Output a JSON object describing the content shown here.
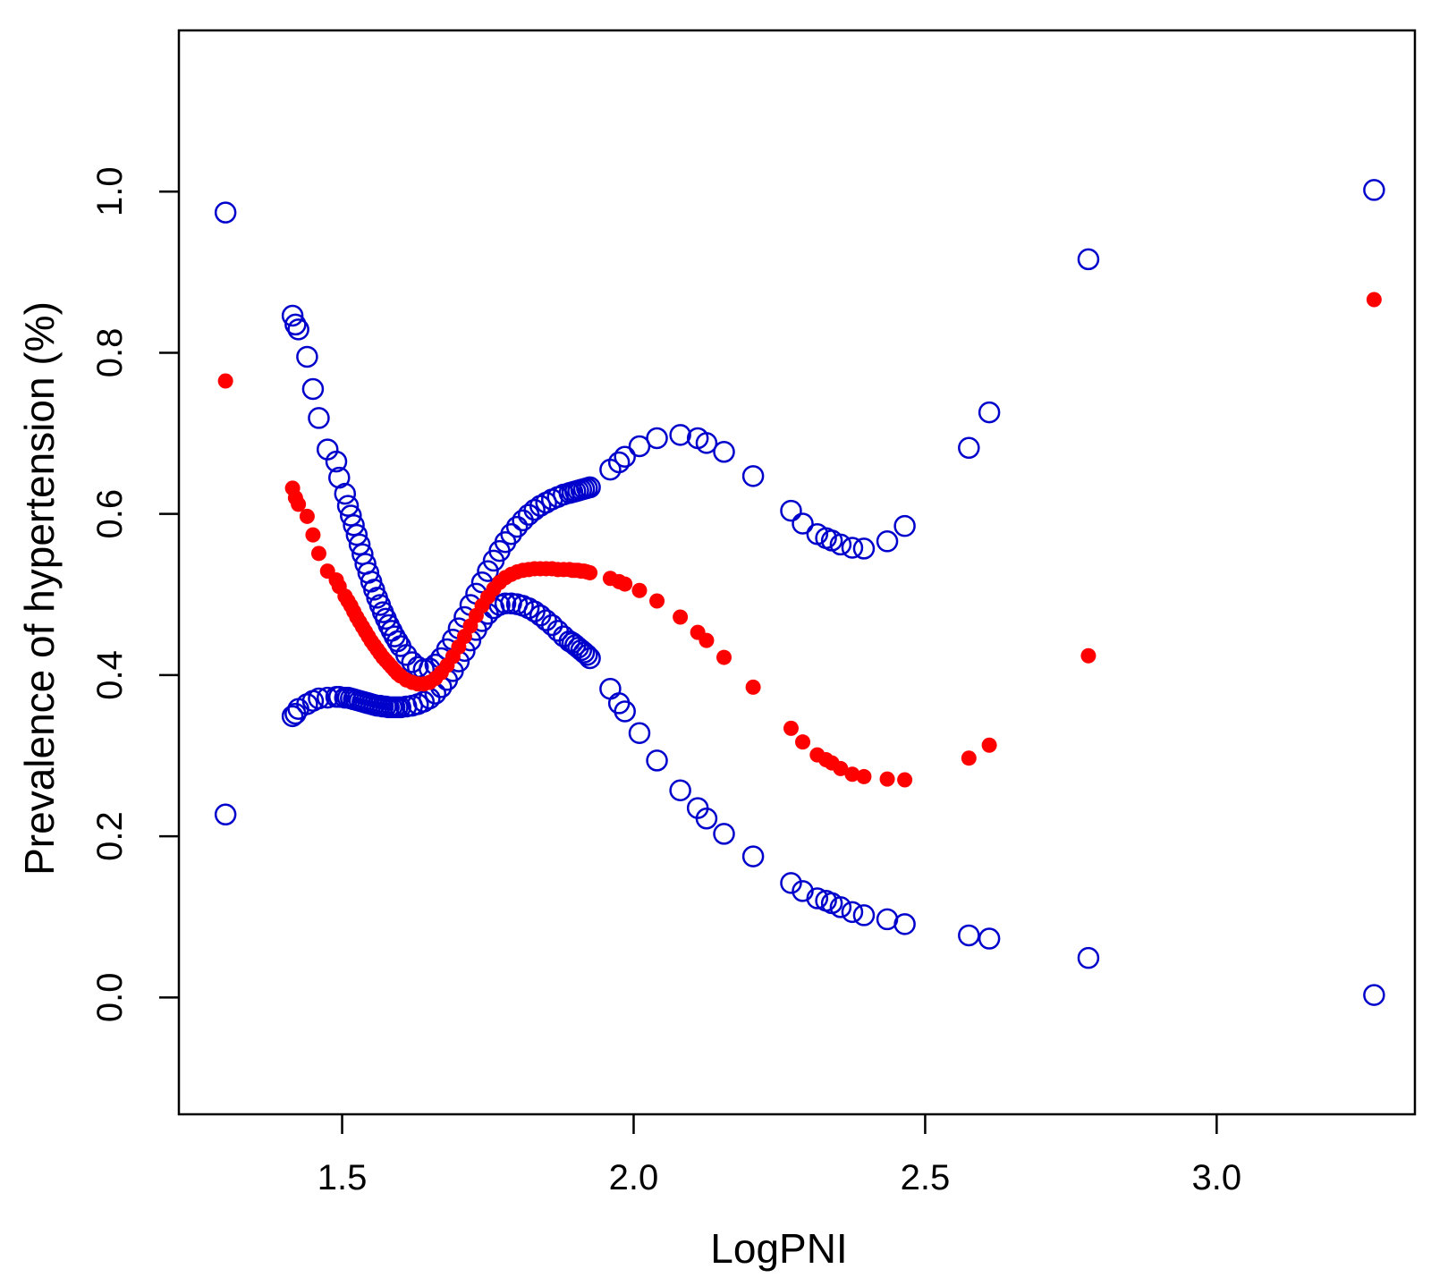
{
  "chart_data": {
    "type": "scatter",
    "title": "",
    "xlabel": "LogPNI",
    "ylabel": "Prevalence of hypertension (%)",
    "xlim": [
      1.22,
      3.34
    ],
    "ylim": [
      -0.145,
      1.2
    ],
    "x_ticks": [
      1.5,
      2.0,
      2.5,
      3.0
    ],
    "x_tick_labels": [
      "1.5",
      "2.0",
      "2.5",
      "3.0"
    ],
    "y_ticks": [
      0.0,
      0.2,
      0.4,
      0.6,
      0.8,
      1.0
    ],
    "y_tick_labels": [
      "0.0",
      "0.2",
      "0.4",
      "0.6",
      "0.8",
      "1.0"
    ],
    "grid": false,
    "legend": "none",
    "colors": {
      "estimate": "#ff0000",
      "ci": "#0000cc"
    },
    "x": [
      1.3,
      1.415,
      1.42,
      1.425,
      1.44,
      1.45,
      1.46,
      1.475,
      1.49,
      1.495,
      1.505,
      1.51,
      1.515,
      1.52,
      1.525,
      1.53,
      1.535,
      1.54,
      1.545,
      1.55,
      1.555,
      1.56,
      1.565,
      1.57,
      1.575,
      1.58,
      1.585,
      1.59,
      1.595,
      1.6,
      1.61,
      1.62,
      1.63,
      1.64,
      1.65,
      1.66,
      1.67,
      1.68,
      1.69,
      1.7,
      1.71,
      1.72,
      1.73,
      1.74,
      1.75,
      1.76,
      1.77,
      1.78,
      1.79,
      1.8,
      1.81,
      1.82,
      1.83,
      1.84,
      1.85,
      1.86,
      1.87,
      1.88,
      1.89,
      1.895,
      1.9,
      1.905,
      1.91,
      1.915,
      1.92,
      1.925,
      1.96,
      1.975,
      1.985,
      2.01,
      2.04,
      2.08,
      2.11,
      2.125,
      2.155,
      2.205,
      2.27,
      2.29,
      2.315,
      2.33,
      2.34,
      2.355,
      2.375,
      2.395,
      2.435,
      2.465,
      2.575,
      2.61,
      2.78,
      3.27
    ],
    "series": [
      {
        "marker": "filled",
        "values": [
          0.765,
          0.632,
          0.62,
          0.612,
          0.597,
          0.574,
          0.551,
          0.529,
          0.518,
          0.51,
          0.498,
          0.492,
          0.486,
          0.479,
          0.472,
          0.466,
          0.46,
          0.454,
          0.448,
          0.442,
          0.437,
          0.432,
          0.427,
          0.422,
          0.418,
          0.414,
          0.41,
          0.406,
          0.402,
          0.399,
          0.394,
          0.391,
          0.389,
          0.389,
          0.391,
          0.396,
          0.403,
          0.412,
          0.423,
          0.435,
          0.448,
          0.461,
          0.474,
          0.486,
          0.497,
          0.507,
          0.515,
          0.521,
          0.525,
          0.528,
          0.53,
          0.531,
          0.532,
          0.532,
          0.532,
          0.532,
          0.531,
          0.531,
          0.531,
          0.53,
          0.53,
          0.53,
          0.529,
          0.529,
          0.528,
          0.527,
          0.52,
          0.516,
          0.513,
          0.505,
          0.492,
          0.472,
          0.453,
          0.443,
          0.422,
          0.385,
          0.334,
          0.317,
          0.301,
          0.295,
          0.291,
          0.284,
          0.277,
          0.274,
          0.271,
          0.27,
          0.297,
          0.313,
          0.424,
          0.866
        ]
      },
      {
        "marker": "open",
        "values": [
          0.974,
          0.846,
          0.835,
          0.829,
          0.795,
          0.755,
          0.719,
          0.68,
          0.665,
          0.645,
          0.625,
          0.61,
          0.598,
          0.586,
          0.574,
          0.562,
          0.55,
          0.538,
          0.527,
          0.516,
          0.506,
          0.496,
          0.487,
          0.478,
          0.47,
          0.462,
          0.455,
          0.448,
          0.442,
          0.436,
          0.425,
          0.416,
          0.41,
          0.407,
          0.408,
          0.413,
          0.421,
          0.432,
          0.444,
          0.458,
          0.472,
          0.487,
          0.501,
          0.515,
          0.529,
          0.542,
          0.554,
          0.565,
          0.575,
          0.584,
          0.592,
          0.599,
          0.605,
          0.61,
          0.614,
          0.618,
          0.621,
          0.624,
          0.626,
          0.627,
          0.628,
          0.629,
          0.63,
          0.631,
          0.632,
          0.633,
          0.655,
          0.664,
          0.671,
          0.684,
          0.694,
          0.698,
          0.694,
          0.688,
          0.677,
          0.647,
          0.604,
          0.588,
          0.575,
          0.57,
          0.567,
          0.562,
          0.558,
          0.557,
          0.566,
          0.585,
          0.682,
          0.726,
          0.916,
          1.002
        ]
      },
      {
        "marker": "open",
        "values": [
          0.227,
          0.349,
          0.352,
          0.358,
          0.364,
          0.368,
          0.371,
          0.372,
          0.373,
          0.373,
          0.372,
          0.372,
          0.371,
          0.37,
          0.369,
          0.368,
          0.367,
          0.366,
          0.365,
          0.364,
          0.363,
          0.362,
          0.362,
          0.361,
          0.361,
          0.36,
          0.36,
          0.36,
          0.36,
          0.36,
          0.361,
          0.362,
          0.364,
          0.367,
          0.371,
          0.377,
          0.385,
          0.394,
          0.405,
          0.417,
          0.43,
          0.443,
          0.456,
          0.467,
          0.476,
          0.483,
          0.487,
          0.489,
          0.489,
          0.488,
          0.486,
          0.483,
          0.479,
          0.474,
          0.468,
          0.462,
          0.455,
          0.448,
          0.442,
          0.44,
          0.437,
          0.434,
          0.431,
          0.428,
          0.425,
          0.421,
          0.383,
          0.365,
          0.355,
          0.328,
          0.294,
          0.257,
          0.235,
          0.222,
          0.203,
          0.175,
          0.142,
          0.132,
          0.123,
          0.12,
          0.117,
          0.112,
          0.106,
          0.102,
          0.097,
          0.091,
          0.077,
          0.073,
          0.049,
          0.003
        ]
      }
    ]
  }
}
